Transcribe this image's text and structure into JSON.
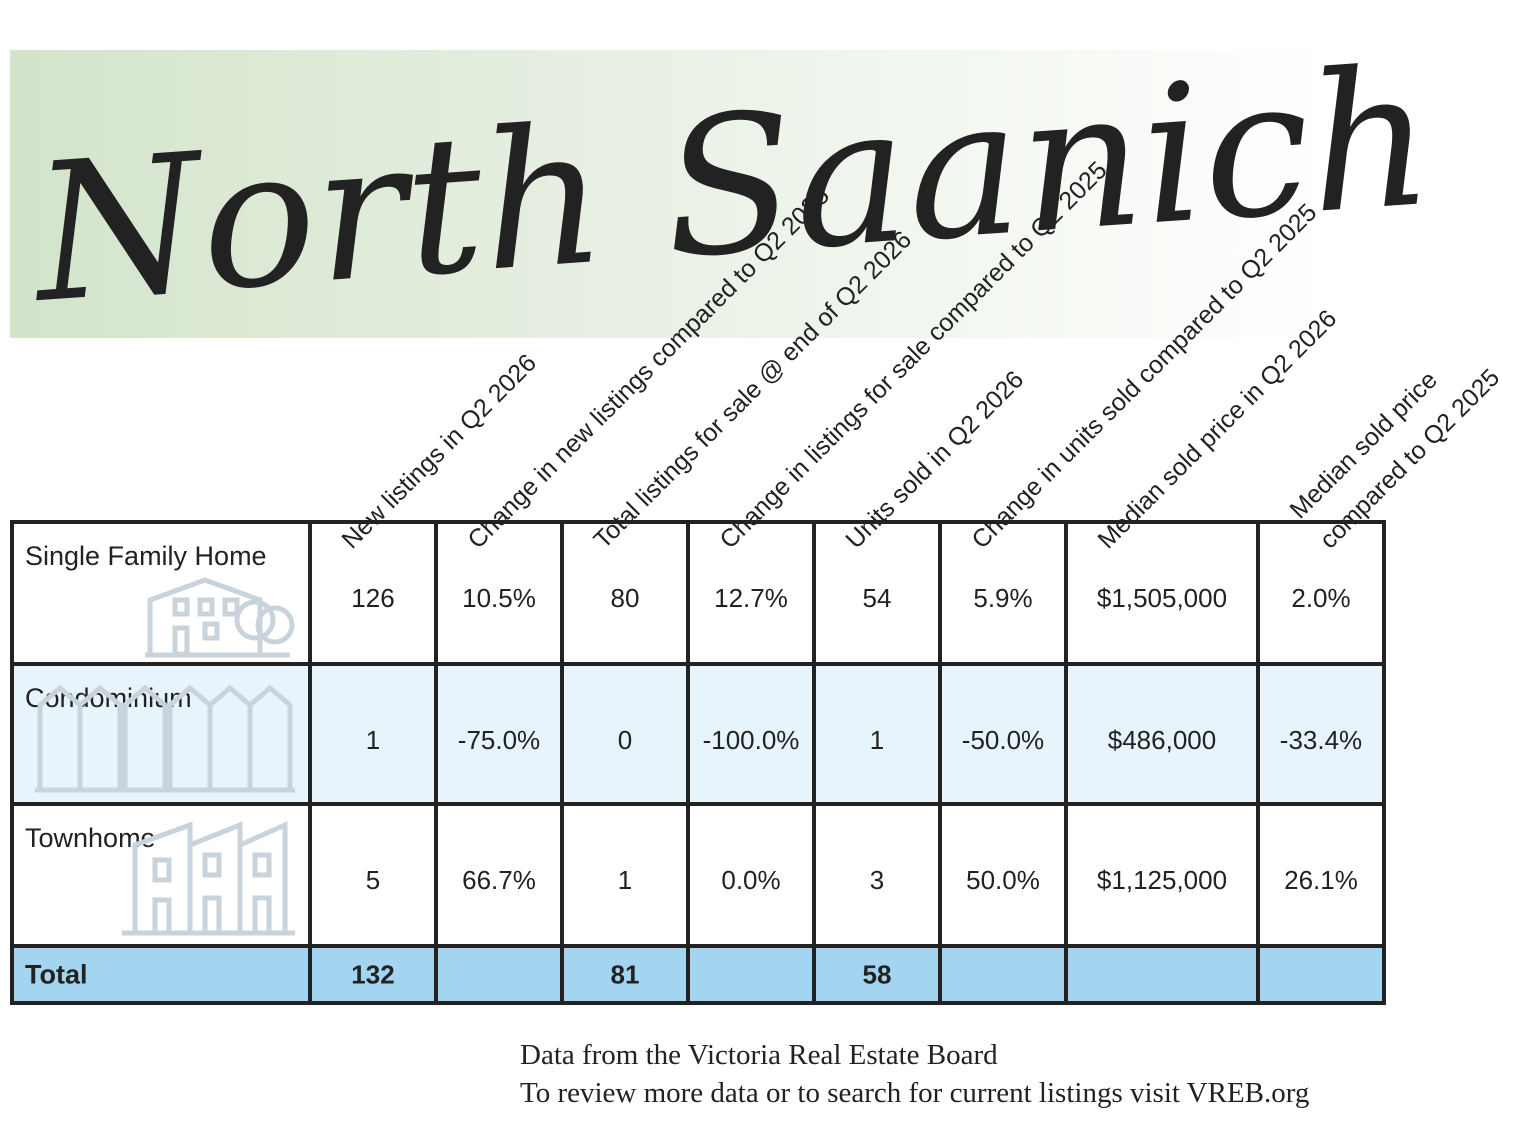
{
  "header": {
    "title": "North Saanich"
  },
  "table": {
    "columns": [
      [
        "New listings in Q2 2026"
      ],
      [
        "Change in new listings compared to Q2 2025"
      ],
      [
        "Total listings for sale @ end of Q2 2026"
      ],
      [
        "Change in listings for sale compared to Q2 2025"
      ],
      [
        "Units sold in Q2 2026"
      ],
      [
        "Change in units sold compared to Q2 2025"
      ],
      [
        "Median sold price in Q2 2026"
      ],
      [
        "Median sold price",
        "compared to Q2 2025"
      ]
    ],
    "rows": [
      {
        "label": "Single Family Home",
        "cells": [
          "126",
          "10.5%",
          "80",
          "12.7%",
          "54",
          "5.9%",
          "$1,505,000",
          "2.0%"
        ]
      },
      {
        "label": "Condominium",
        "cells": [
          "1",
          "-75.0%",
          "0",
          "-100.0%",
          "1",
          "-50.0%",
          "$486,000",
          "-33.4%"
        ]
      },
      {
        "label": "Townhome",
        "cells": [
          "5",
          "66.7%",
          "1",
          "0.0%",
          "3",
          "50.0%",
          "$1,125,000",
          "26.1%"
        ]
      }
    ],
    "total": {
      "label": "Total",
      "cells": [
        "132",
        null,
        "81",
        null,
        "58",
        null,
        null,
        null
      ]
    }
  },
  "footer": {
    "lines": [
      "Data from the Victoria Real Estate Board",
      "To review more data or to search for current listings visit VREB.org"
    ]
  }
}
